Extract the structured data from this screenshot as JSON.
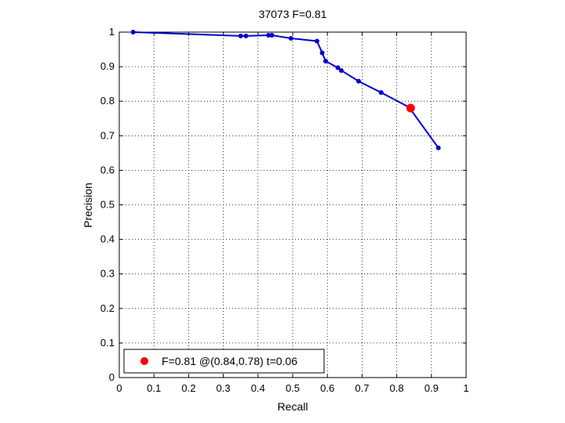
{
  "chart_data": {
    "type": "line",
    "title": "37073 F=0.81",
    "xlabel": "Recall",
    "ylabel": "Precision",
    "xlim": [
      0,
      1
    ],
    "ylim": [
      0,
      1
    ],
    "xticks": [
      "0",
      "0.1",
      "0.2",
      "0.3",
      "0.4",
      "0.5",
      "0.6",
      "0.7",
      "0.8",
      "0.9",
      "1"
    ],
    "yticks": [
      "0",
      "0.1",
      "0.2",
      "0.3",
      "0.4",
      "0.5",
      "0.6",
      "0.7",
      "0.8",
      "0.9",
      "1"
    ],
    "grid": true,
    "legend_position": "bottom-left",
    "series": [
      {
        "color": "#0000cc",
        "x": [
          0.04,
          0.35,
          0.365,
          0.43,
          0.44,
          0.495,
          0.57,
          0.585,
          0.595,
          0.63,
          0.64,
          0.69,
          0.755,
          0.835,
          0.92
        ],
        "y": [
          1.0,
          0.989,
          0.989,
          0.991,
          0.991,
          0.982,
          0.974,
          0.94,
          0.916,
          0.897,
          0.889,
          0.858,
          0.825,
          0.783,
          0.665
        ]
      }
    ],
    "best_point": {
      "x": 0.84,
      "y": 0.78,
      "color": "#ff0000",
      "legend_label": "F=0.81 @(0.84,0.78) t=0.06"
    }
  }
}
